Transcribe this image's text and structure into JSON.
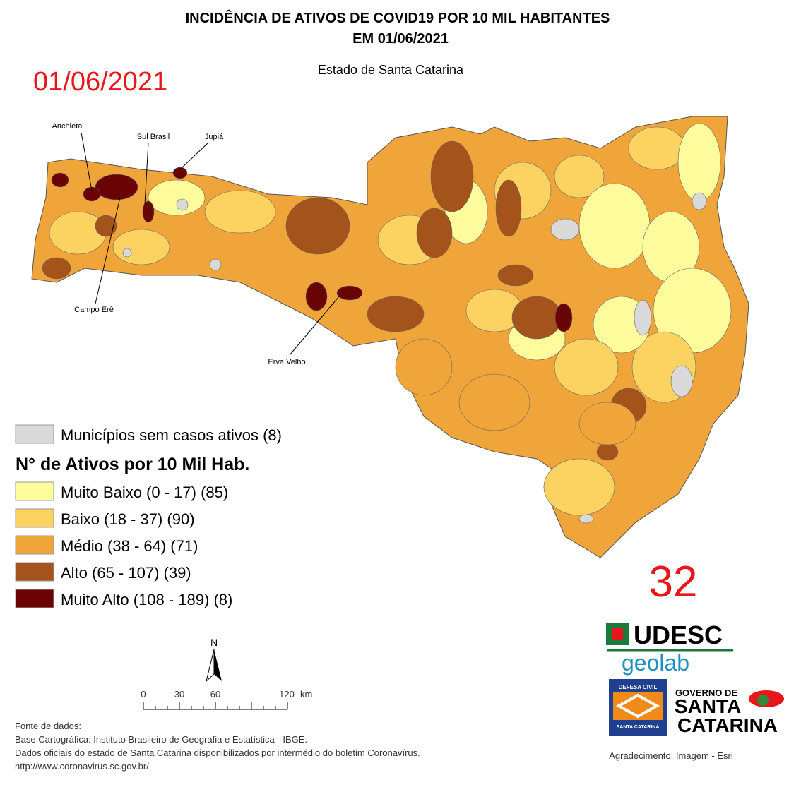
{
  "header": {
    "title_line1": "INCIDÊNCIA DE ATIVOS DE COVID19 POR 10 MIL HABITANTES",
    "title_line2": "EM 01/06/2021",
    "subtitle": "Estado de Santa Catarina",
    "date": "01/06/2021"
  },
  "map": {
    "labels": [
      "Anchieta",
      "Sul Brasil",
      "Jupiá",
      "Campo Erê",
      "Erva Velho"
    ]
  },
  "legend": {
    "no_cases": {
      "label": "Municípios sem casos ativos (8)",
      "color": "#d9d9d9"
    },
    "title": "N° de Ativos por 10 Mil Hab.",
    "classes": [
      {
        "label": "Muito Baixo (0 - 17) (85)",
        "color": "#fefb9c"
      },
      {
        "label": "Baixo (18 - 37) (90)",
        "color": "#fcd261"
      },
      {
        "label": "Médio (38 - 64) (71)",
        "color": "#f0a53a"
      },
      {
        "label": "Alto (65 - 107) (39)",
        "color": "#a4531b"
      },
      {
        "label": "Muito Alto (108 - 189) (8)",
        "color": "#6a0404"
      }
    ]
  },
  "bulletin_number": "32",
  "scale": {
    "north": "N",
    "ticks": [
      "0",
      "30",
      "60",
      "120"
    ],
    "unit": "km"
  },
  "logos": {
    "udesc": "UDESC",
    "geolab": "geolab",
    "defesa_top": "DEFESA CIVIL",
    "defesa_bottom": "SANTA CATARINA",
    "gov_top": "GOVERNO DE",
    "gov_mid": "SANTA",
    "gov_bottom": "CATARINA"
  },
  "source": {
    "lines": [
      "Fonte de dados:",
      "Base Cartográfica: Instituto Brasileiro de Geografia e Estatística - IBGE.",
      "Dados oficiais do estado de Santa Catarina disponibilizados por intermédio do boletim Coronavírus.",
      "http://www.coronavirus.sc.gov.br/"
    ],
    "credit": "Agradecimento: Imagem - Esri"
  }
}
